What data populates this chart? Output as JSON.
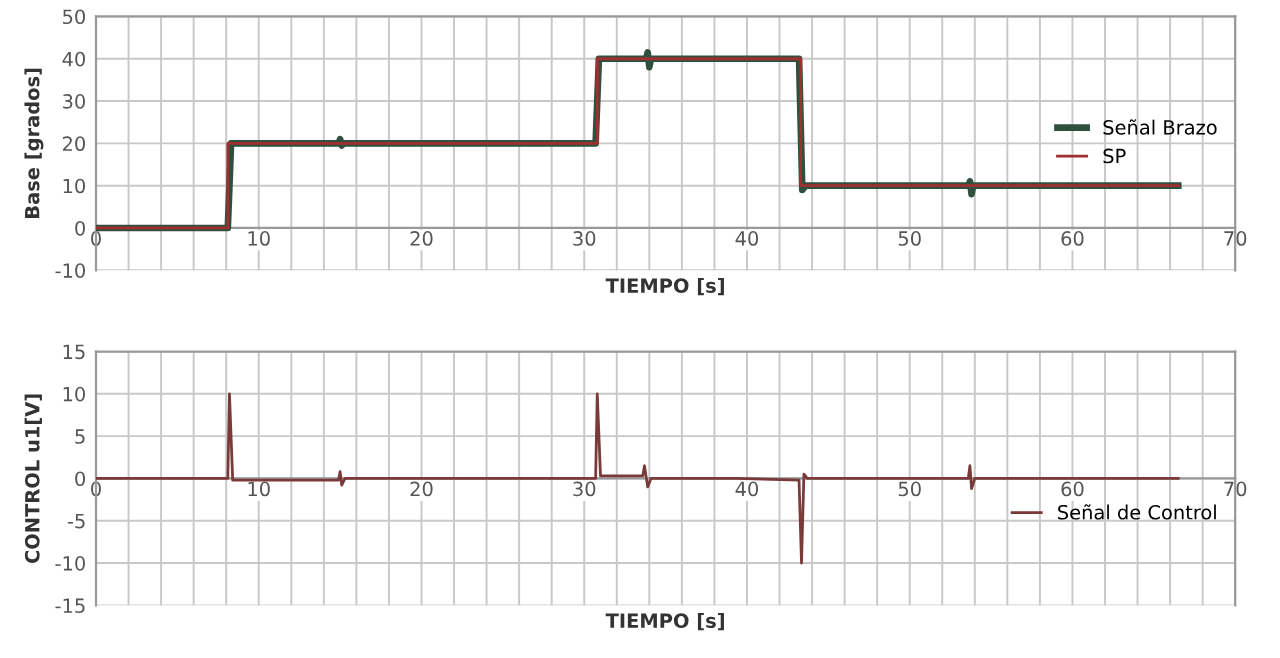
{
  "chart_data": [
    {
      "type": "line",
      "xlabel": "TIEMPO [s]",
      "ylabel": "Base [grados]",
      "xlim": [
        0,
        70
      ],
      "ylim": [
        -10,
        50
      ],
      "xticks": [
        0,
        {
          "value": 2,
          "label": null
        },
        {
          "value": 4,
          "label": null
        },
        {
          "value": 6,
          "label": null
        },
        {
          "value": 8,
          "label": null
        },
        10,
        {
          "value": 12,
          "label": null
        },
        {
          "value": 14,
          "label": null
        },
        {
          "value": 16,
          "label": null
        },
        {
          "value": 18,
          "label": null
        },
        20,
        {
          "value": 22,
          "label": null
        },
        {
          "value": 24,
          "label": null
        },
        {
          "value": 26,
          "label": null
        },
        {
          "value": 28,
          "label": null
        },
        30,
        {
          "value": 32,
          "label": null
        },
        {
          "value": 34,
          "label": null
        },
        {
          "value": 36,
          "label": null
        },
        {
          "value": 38,
          "label": null
        },
        40,
        {
          "value": 42,
          "label": null
        },
        {
          "value": 44,
          "label": null
        },
        {
          "value": 46,
          "label": null
        },
        {
          "value": 48,
          "label": null
        },
        50,
        {
          "value": 52,
          "label": null
        },
        {
          "value": 54,
          "label": null
        },
        {
          "value": 56,
          "label": null
        },
        {
          "value": 58,
          "label": null
        },
        60,
        {
          "value": 62,
          "label": null
        },
        {
          "value": 64,
          "label": null
        },
        {
          "value": 66,
          "label": null
        },
        {
          "value": 68,
          "label": null
        },
        70
      ],
      "yticks": [
        -10,
        0,
        10,
        20,
        30,
        40,
        50
      ],
      "grid": true,
      "legend": "right",
      "series": [
        {
          "name": "Señal Brazo",
          "color": "#2f4f3f",
          "x": [
            0,
            8.1,
            8.3,
            14.9,
            15.0,
            15.1,
            15.2,
            30.7,
            30.9,
            33.8,
            33.9,
            34.0,
            34.1,
            43.2,
            43.4,
            43.6,
            53.6,
            53.7,
            53.8,
            53.9,
            66.5
          ],
          "values": [
            0,
            0,
            20,
            20,
            21,
            19.5,
            20,
            20,
            40,
            40,
            41.5,
            38,
            40,
            40,
            9,
            10,
            10,
            11,
            8,
            10,
            10
          ]
        },
        {
          "name": "SP",
          "color": "#a03030",
          "x": [
            0,
            8.1,
            8.1,
            30.8,
            30.8,
            43.3,
            43.3,
            66.5
          ],
          "values": [
            0,
            0,
            20,
            20,
            40,
            40,
            10,
            10
          ]
        }
      ]
    },
    {
      "type": "line",
      "xlabel": "TIEMPO [s]",
      "ylabel": "CONTROL u1[V]",
      "xlim": [
        0,
        70
      ],
      "ylim": [
        -15,
        15
      ],
      "xticks": [
        0,
        {
          "value": 2,
          "label": null
        },
        {
          "value": 4,
          "label": null
        },
        {
          "value": 6,
          "label": null
        },
        {
          "value": 8,
          "label": null
        },
        10,
        {
          "value": 12,
          "label": null
        },
        {
          "value": 14,
          "label": null
        },
        {
          "value": 16,
          "label": null
        },
        {
          "value": 18,
          "label": null
        },
        20,
        {
          "value": 22,
          "label": null
        },
        {
          "value": 24,
          "label": null
        },
        {
          "value": 26,
          "label": null
        },
        {
          "value": 28,
          "label": null
        },
        30,
        {
          "value": 32,
          "label": null
        },
        {
          "value": 34,
          "label": null
        },
        {
          "value": 36,
          "label": null
        },
        {
          "value": 38,
          "label": null
        },
        40,
        {
          "value": 42,
          "label": null
        },
        {
          "value": 44,
          "label": null
        },
        {
          "value": 46,
          "label": null
        },
        {
          "value": 48,
          "label": null
        },
        50,
        {
          "value": 52,
          "label": null
        },
        {
          "value": 54,
          "label": null
        },
        {
          "value": 56,
          "label": null
        },
        {
          "value": 58,
          "label": null
        },
        60,
        {
          "value": 62,
          "label": null
        },
        {
          "value": 64,
          "label": null
        },
        {
          "value": 66,
          "label": null
        },
        {
          "value": 68,
          "label": null
        },
        70
      ],
      "yticks": [
        -15,
        -10,
        -5,
        0,
        5,
        10,
        15
      ],
      "grid": true,
      "legend": "right",
      "series": [
        {
          "name": "Señal de Control",
          "color": "#7a3a3a",
          "x": [
            0,
            8.1,
            8.2,
            8.4,
            14.9,
            15.0,
            15.1,
            15.3,
            20.2,
            30.7,
            30.8,
            31.0,
            33.6,
            33.7,
            33.9,
            34.1,
            39.3,
            43.2,
            43.35,
            43.5,
            43.7,
            53.6,
            53.7,
            53.8,
            54.0,
            66.5
          ],
          "values": [
            0,
            0,
            10,
            -0.2,
            -0.2,
            0.8,
            -0.8,
            0,
            0,
            0,
            10,
            0.3,
            0.3,
            1.5,
            -1,
            0,
            0,
            -0.2,
            -10,
            0.5,
            0,
            0,
            1.5,
            -1.2,
            0,
            0
          ]
        }
      ]
    }
  ]
}
